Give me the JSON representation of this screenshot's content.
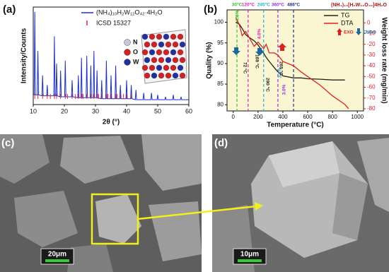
{
  "chart_data": [
    {
      "type": "line",
      "panel": "(a)",
      "xlabel": "2θ (°)",
      "ylabel": "Intensity/Counts",
      "x": [
        10,
        10.3,
        10.5,
        10.7,
        11.3,
        11.5,
        11.7,
        12.8,
        13,
        13.2,
        14.3,
        14.5,
        14.7,
        16.6,
        16.8,
        17,
        17.3,
        17.5,
        17.7,
        18.6,
        18.8,
        19,
        20.1,
        20.3,
        20.5,
        22.3,
        22.5,
        22.7,
        24.3,
        24.5,
        24.7,
        25.3,
        25.5,
        25.7,
        27,
        27.2,
        27.4,
        28.3,
        28.5,
        28.7,
        29.3,
        29.5,
        29.7,
        30.3,
        30.5,
        30.7,
        31.8,
        32,
        32.2,
        33.3,
        33.5,
        33.7,
        34.8,
        35,
        35.2,
        36.3,
        36.5,
        36.7,
        37.8,
        38,
        38.2,
        39.8,
        40,
        40.2,
        41.3,
        41.5,
        41.7,
        42.8,
        43,
        43.2,
        45.3,
        45.5,
        45.7,
        47.8,
        48,
        48.2,
        49.8,
        50,
        50.2,
        52.3,
        52.5,
        52.7,
        54.8,
        55,
        55.2,
        57.3,
        57.5,
        57.7,
        60
      ],
      "series": [
        {
          "name": "(NH₄)₁₀H₂W₁₂O₄₂·4H₂O",
          "color": "#1a2fd6",
          "values": [
            10,
            10,
            95,
            10,
            10,
            55,
            10,
            9,
            30,
            9,
            9,
            20,
            9,
            9,
            70,
            9,
            9,
            42,
            9,
            8,
            35,
            8,
            8,
            45,
            8,
            8,
            25,
            8,
            7,
            30,
            7,
            7,
            48,
            7,
            7,
            50,
            7,
            7,
            40,
            7,
            7,
            55,
            7,
            7,
            35,
            7,
            6,
            25,
            6,
            6,
            45,
            6,
            6,
            30,
            6,
            6,
            40,
            6,
            6,
            20,
            6,
            6,
            25,
            6,
            6,
            20,
            6,
            5,
            15,
            5,
            5,
            12,
            5,
            5,
            12,
            5,
            5,
            10,
            5,
            5,
            8,
            5,
            5,
            10,
            5,
            5,
            8,
            5,
            5
          ]
        }
      ],
      "reference": {
        "name": "ICSD 15327",
        "color": "#e0303a",
        "x": [
          10.5,
          11.5,
          13,
          14.5,
          15.5,
          16.8,
          17.5,
          18.8,
          20.3,
          21,
          22.5,
          23.5,
          24.5,
          25.5,
          26,
          27.2,
          28.5,
          29.5,
          30.5,
          31,
          32,
          33.5,
          34,
          35,
          36.5,
          37,
          38,
          39,
          40,
          41.5
        ]
      },
      "atoms": [
        {
          "name": "N",
          "color": "#c8c8d8"
        },
        {
          "name": "O",
          "color": "#d42020"
        },
        {
          "name": "W",
          "color": "#2030a0"
        }
      ],
      "xlim": [
        10,
        60
      ],
      "xticks": [
        10,
        20,
        30,
        40,
        50,
        60
      ],
      "ylim": [
        0,
        100
      ]
    },
    {
      "type": "line",
      "panel": "(b)",
      "title": "(NH₄)₁₀[H₂W₁₂O₄₂]4H₂O",
      "xlabel": "Temperature (°C)",
      "ylabel": "Quality (%)",
      "y2label": "Weight loss rate (mg/min)",
      "x": [
        20,
        50,
        72,
        100,
        120,
        169,
        200,
        245,
        265,
        290,
        330,
        360,
        400,
        486,
        550,
        600,
        700,
        800,
        900,
        930
      ],
      "series": [
        {
          "name": "TG",
          "color": "#222222",
          "values": [
            100,
            99.5,
            98.5,
            97,
            96.5,
            95.5,
            94.5,
            92.5,
            91.5,
            90.5,
            89,
            88,
            87,
            86.5,
            86.5,
            86.3,
            86.2,
            86,
            86,
            null
          ]
        },
        {
          "name": "DTA",
          "color": "#e02020",
          "axis": "y2",
          "values": [
            5,
            -2,
            -12,
            -8,
            -12,
            -22,
            -18,
            -24,
            -20,
            -28,
            -28,
            -30,
            -36,
            -40,
            -46,
            -50,
            -58,
            -68,
            -76,
            -80
          ]
        }
      ],
      "markers": [
        {
          "value": 30,
          "label": "30°C",
          "color": "#33c033"
        },
        {
          "value": 120,
          "label": "120°C",
          "color": "#e020b0"
        },
        {
          "value": 245,
          "label": "245°C",
          "color": "#20b0d0"
        },
        {
          "value": 360,
          "label": "360°C",
          "color": "#9030e0"
        },
        {
          "value": 486,
          "label": "486°C",
          "color": "#203080"
        }
      ],
      "annotations": [
        {
          "text": "3.6%",
          "color": "#33c033"
        },
        {
          "text": "4.0%",
          "color": "#e020b0"
        },
        {
          "text": "3.3%",
          "color": "#20b0d0"
        },
        {
          "text": "3.0%",
          "color": "#9030e0"
        },
        {
          "text": "72 °C",
          "color": "#222222"
        },
        {
          "text": "169 °C",
          "color": "#222222"
        },
        {
          "text": "290 °C",
          "color": "#222222"
        },
        {
          "text": "265 °C",
          "color": "#222222"
        }
      ],
      "exo": "EXO",
      "endo": "ENDO",
      "xlim": [
        -50,
        1050
      ],
      "xticks": [
        0,
        200,
        400,
        600,
        800,
        1000
      ],
      "ylim": [
        78.5,
        103
      ],
      "yticks": [
        80,
        85,
        90,
        95,
        100
      ],
      "y2lim": [
        -82,
        12
      ],
      "y2ticks": [
        0,
        -10,
        -20,
        -30,
        -40,
        -50,
        -60,
        -70,
        -80
      ]
    }
  ],
  "panels": [
    {
      "label": "(c)",
      "scale_bar": "20μm"
    },
    {
      "label": "(d)",
      "scale_bar": "10μm"
    }
  ]
}
